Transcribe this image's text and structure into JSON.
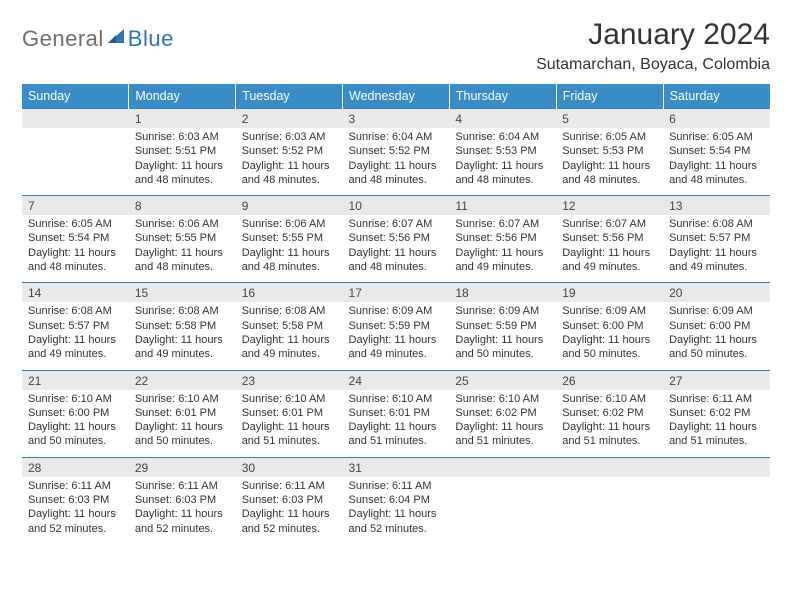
{
  "logo": {
    "word1": "General",
    "word2": "Blue"
  },
  "title": "January 2024",
  "location": "Sutamarchan, Boyaca, Colombia",
  "colors": {
    "header_bg": "#3a8cc9",
    "header_text": "#ffffff",
    "daynum_bg": "#e9e9e9",
    "border": "#3a7db0",
    "text": "#333333",
    "logo_gray": "#6f6f6f",
    "logo_blue": "#2e75b6"
  },
  "daynames": [
    "Sunday",
    "Monday",
    "Tuesday",
    "Wednesday",
    "Thursday",
    "Friday",
    "Saturday"
  ],
  "weeks": [
    {
      "nums": [
        "",
        "1",
        "2",
        "3",
        "4",
        "5",
        "6"
      ],
      "cells": [
        null,
        {
          "sunrise": "Sunrise: 6:03 AM",
          "sunset": "Sunset: 5:51 PM",
          "daylight": "Daylight: 11 hours and 48 minutes."
        },
        {
          "sunrise": "Sunrise: 6:03 AM",
          "sunset": "Sunset: 5:52 PM",
          "daylight": "Daylight: 11 hours and 48 minutes."
        },
        {
          "sunrise": "Sunrise: 6:04 AM",
          "sunset": "Sunset: 5:52 PM",
          "daylight": "Daylight: 11 hours and 48 minutes."
        },
        {
          "sunrise": "Sunrise: 6:04 AM",
          "sunset": "Sunset: 5:53 PM",
          "daylight": "Daylight: 11 hours and 48 minutes."
        },
        {
          "sunrise": "Sunrise: 6:05 AM",
          "sunset": "Sunset: 5:53 PM",
          "daylight": "Daylight: 11 hours and 48 minutes."
        },
        {
          "sunrise": "Sunrise: 6:05 AM",
          "sunset": "Sunset: 5:54 PM",
          "daylight": "Daylight: 11 hours and 48 minutes."
        }
      ]
    },
    {
      "nums": [
        "7",
        "8",
        "9",
        "10",
        "11",
        "12",
        "13"
      ],
      "cells": [
        {
          "sunrise": "Sunrise: 6:05 AM",
          "sunset": "Sunset: 5:54 PM",
          "daylight": "Daylight: 11 hours and 48 minutes."
        },
        {
          "sunrise": "Sunrise: 6:06 AM",
          "sunset": "Sunset: 5:55 PM",
          "daylight": "Daylight: 11 hours and 48 minutes."
        },
        {
          "sunrise": "Sunrise: 6:06 AM",
          "sunset": "Sunset: 5:55 PM",
          "daylight": "Daylight: 11 hours and 48 minutes."
        },
        {
          "sunrise": "Sunrise: 6:07 AM",
          "sunset": "Sunset: 5:56 PM",
          "daylight": "Daylight: 11 hours and 48 minutes."
        },
        {
          "sunrise": "Sunrise: 6:07 AM",
          "sunset": "Sunset: 5:56 PM",
          "daylight": "Daylight: 11 hours and 49 minutes."
        },
        {
          "sunrise": "Sunrise: 6:07 AM",
          "sunset": "Sunset: 5:56 PM",
          "daylight": "Daylight: 11 hours and 49 minutes."
        },
        {
          "sunrise": "Sunrise: 6:08 AM",
          "sunset": "Sunset: 5:57 PM",
          "daylight": "Daylight: 11 hours and 49 minutes."
        }
      ]
    },
    {
      "nums": [
        "14",
        "15",
        "16",
        "17",
        "18",
        "19",
        "20"
      ],
      "cells": [
        {
          "sunrise": "Sunrise: 6:08 AM",
          "sunset": "Sunset: 5:57 PM",
          "daylight": "Daylight: 11 hours and 49 minutes."
        },
        {
          "sunrise": "Sunrise: 6:08 AM",
          "sunset": "Sunset: 5:58 PM",
          "daylight": "Daylight: 11 hours and 49 minutes."
        },
        {
          "sunrise": "Sunrise: 6:08 AM",
          "sunset": "Sunset: 5:58 PM",
          "daylight": "Daylight: 11 hours and 49 minutes."
        },
        {
          "sunrise": "Sunrise: 6:09 AM",
          "sunset": "Sunset: 5:59 PM",
          "daylight": "Daylight: 11 hours and 49 minutes."
        },
        {
          "sunrise": "Sunrise: 6:09 AM",
          "sunset": "Sunset: 5:59 PM",
          "daylight": "Daylight: 11 hours and 50 minutes."
        },
        {
          "sunrise": "Sunrise: 6:09 AM",
          "sunset": "Sunset: 6:00 PM",
          "daylight": "Daylight: 11 hours and 50 minutes."
        },
        {
          "sunrise": "Sunrise: 6:09 AM",
          "sunset": "Sunset: 6:00 PM",
          "daylight": "Daylight: 11 hours and 50 minutes."
        }
      ]
    },
    {
      "nums": [
        "21",
        "22",
        "23",
        "24",
        "25",
        "26",
        "27"
      ],
      "cells": [
        {
          "sunrise": "Sunrise: 6:10 AM",
          "sunset": "Sunset: 6:00 PM",
          "daylight": "Daylight: 11 hours and 50 minutes."
        },
        {
          "sunrise": "Sunrise: 6:10 AM",
          "sunset": "Sunset: 6:01 PM",
          "daylight": "Daylight: 11 hours and 50 minutes."
        },
        {
          "sunrise": "Sunrise: 6:10 AM",
          "sunset": "Sunset: 6:01 PM",
          "daylight": "Daylight: 11 hours and 51 minutes."
        },
        {
          "sunrise": "Sunrise: 6:10 AM",
          "sunset": "Sunset: 6:01 PM",
          "daylight": "Daylight: 11 hours and 51 minutes."
        },
        {
          "sunrise": "Sunrise: 6:10 AM",
          "sunset": "Sunset: 6:02 PM",
          "daylight": "Daylight: 11 hours and 51 minutes."
        },
        {
          "sunrise": "Sunrise: 6:10 AM",
          "sunset": "Sunset: 6:02 PM",
          "daylight": "Daylight: 11 hours and 51 minutes."
        },
        {
          "sunrise": "Sunrise: 6:11 AM",
          "sunset": "Sunset: 6:02 PM",
          "daylight": "Daylight: 11 hours and 51 minutes."
        }
      ]
    },
    {
      "nums": [
        "28",
        "29",
        "30",
        "31",
        "",
        "",
        ""
      ],
      "cells": [
        {
          "sunrise": "Sunrise: 6:11 AM",
          "sunset": "Sunset: 6:03 PM",
          "daylight": "Daylight: 11 hours and 52 minutes."
        },
        {
          "sunrise": "Sunrise: 6:11 AM",
          "sunset": "Sunset: 6:03 PM",
          "daylight": "Daylight: 11 hours and 52 minutes."
        },
        {
          "sunrise": "Sunrise: 6:11 AM",
          "sunset": "Sunset: 6:03 PM",
          "daylight": "Daylight: 11 hours and 52 minutes."
        },
        {
          "sunrise": "Sunrise: 6:11 AM",
          "sunset": "Sunset: 6:04 PM",
          "daylight": "Daylight: 11 hours and 52 minutes."
        },
        null,
        null,
        null
      ]
    }
  ]
}
